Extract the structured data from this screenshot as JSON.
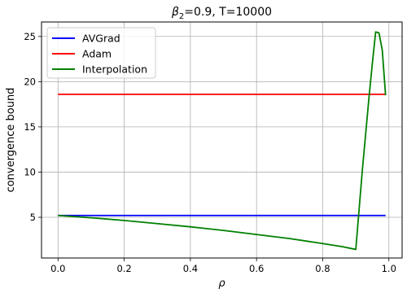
{
  "chart_data": {
    "type": "line",
    "title_prefix": "β",
    "title_subscript": "2",
    "title_suffix": "=0.9, T=10000",
    "xlabel": "ρ",
    "ylabel": "convergence bound",
    "xlim": [
      -0.05,
      1.04
    ],
    "ylim": [
      0.5,
      26.6
    ],
    "xticks": [
      0.0,
      0.2,
      0.4,
      0.6,
      0.8,
      1.0
    ],
    "xtick_labels": [
      "0.0",
      "0.2",
      "0.4",
      "0.6",
      "0.8",
      "1.0"
    ],
    "yticks": [
      5,
      10,
      15,
      20,
      25
    ],
    "ytick_labels": [
      "5",
      "10",
      "15",
      "20",
      "25"
    ],
    "grid": true,
    "legend_position": "top-left",
    "series": [
      {
        "name": "AVGrad",
        "color": "#0000ff",
        "x": [
          0.0,
          0.99
        ],
        "y": [
          5.2,
          5.2
        ]
      },
      {
        "name": "Adam",
        "color": "#ff0000",
        "x": [
          0.0,
          0.99
        ],
        "y": [
          18.6,
          18.6
        ]
      },
      {
        "name": "Interpolation",
        "color": "#008000",
        "x": [
          0.0,
          0.1,
          0.2,
          0.3,
          0.4,
          0.5,
          0.6,
          0.7,
          0.8,
          0.86,
          0.9,
          0.92,
          0.94,
          0.95,
          0.96,
          0.97,
          0.98,
          0.99
        ],
        "y": [
          5.2,
          4.95,
          4.65,
          4.3,
          3.95,
          3.55,
          3.1,
          2.65,
          2.1,
          1.75,
          1.45,
          10.3,
          18.3,
          22.0,
          25.5,
          25.4,
          23.5,
          18.5
        ]
      }
    ]
  }
}
